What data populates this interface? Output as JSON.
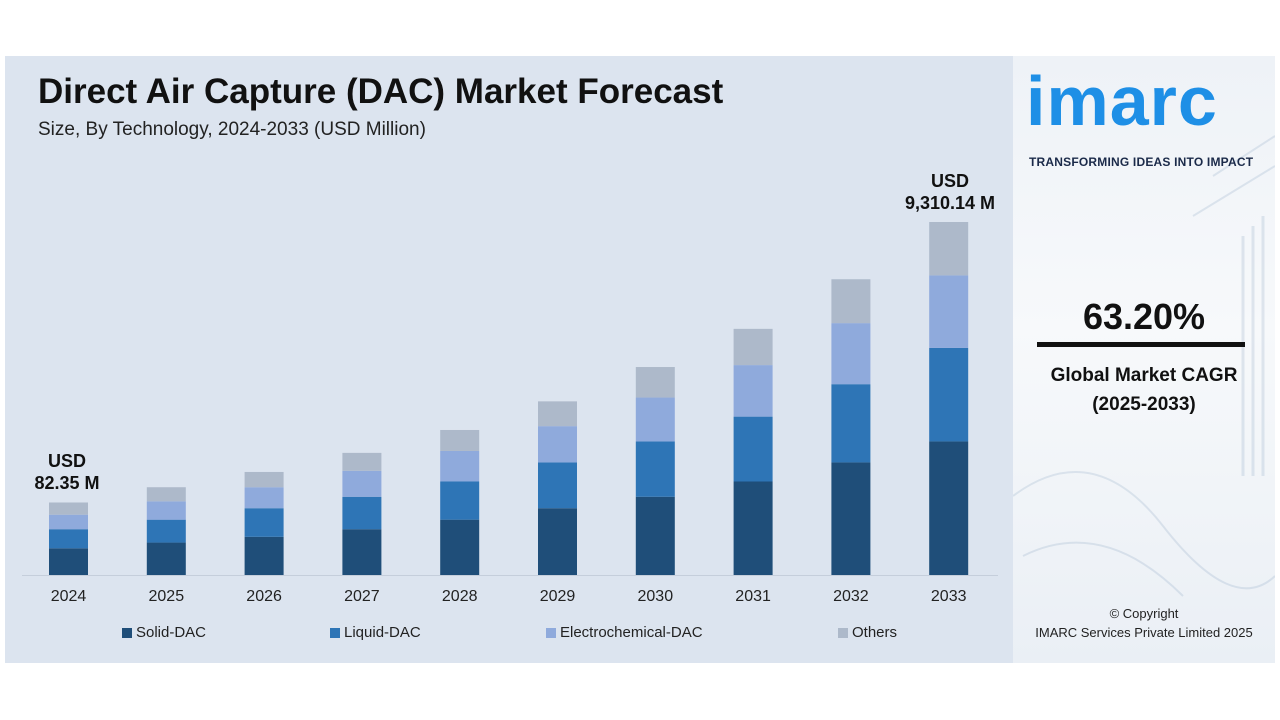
{
  "title": "Direct Air Capture (DAC) Market Forecast",
  "subtitle": "Size, By Technology, 2024-2033 (USD Million)",
  "start_label": {
    "line1": "USD",
    "line2": "82.35 M"
  },
  "end_label": {
    "line1": "USD",
    "line2": "9,310.14 M"
  },
  "colors": {
    "Solid-DAC": "#1f4e79",
    "Liquid-DAC": "#2e75b6",
    "Electrochemical-DAC": "#8faadc",
    "Others": "#adb9ca",
    "logo": "#1e8fe6"
  },
  "legend": [
    "Solid-DAC",
    "Liquid-DAC",
    "Electrochemical-DAC",
    "Others"
  ],
  "logo": {
    "text": "imarc",
    "tagline": "TRANSFORMING IDEAS INTO IMPACT"
  },
  "cagr": {
    "value": "63.20%",
    "label_line1": "Global Market CAGR",
    "label_line2": "(2025-2033)"
  },
  "copyright": {
    "line1": "© Copyright",
    "line2": "IMARC Services Private Limited 2025"
  },
  "chart_data": {
    "type": "bar",
    "stacked": true,
    "title": "Direct Air Capture (DAC) Market Forecast",
    "subtitle": "Size, By Technology, 2024-2033 (USD Million)",
    "categories": [
      "2024",
      "2025",
      "2026",
      "2027",
      "2028",
      "2029",
      "2030",
      "2031",
      "2032",
      "2033"
    ],
    "series": [
      {
        "name": "Solid-DAC",
        "values": [
          0.7,
          0.85,
          1.0,
          1.2,
          1.45,
          1.75,
          2.05,
          2.45,
          2.95,
          3.5
        ]
      },
      {
        "name": "Liquid-DAC",
        "values": [
          0.5,
          0.6,
          0.75,
          0.85,
          1.0,
          1.2,
          1.45,
          1.7,
          2.05,
          2.45
        ]
      },
      {
        "name": "Electrochemical-DAC",
        "values": [
          0.38,
          0.48,
          0.55,
          0.68,
          0.8,
          0.95,
          1.15,
          1.35,
          1.6,
          1.9
        ]
      },
      {
        "name": "Others",
        "values": [
          0.32,
          0.37,
          0.4,
          0.47,
          0.55,
          0.65,
          0.8,
          0.95,
          1.15,
          1.4
        ]
      }
    ],
    "annotations": [
      "USD 82.35 M",
      "USD 9,310.14 M"
    ],
    "legend_position": "bottom",
    "grid": false
  }
}
